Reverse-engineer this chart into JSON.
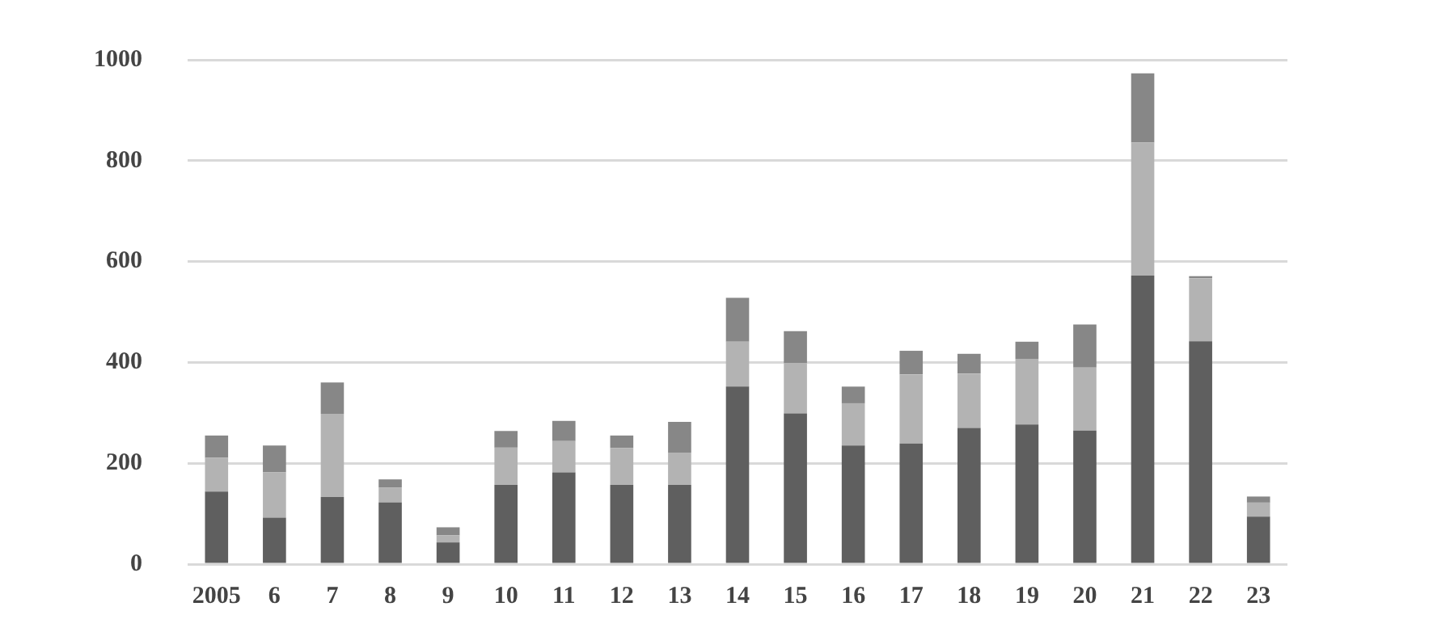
{
  "chart_data": {
    "type": "bar",
    "stacked": true,
    "categories": [
      "2005",
      "6",
      "7",
      "8",
      "9",
      "10",
      "11",
      "12",
      "13",
      "14",
      "15",
      "16",
      "17",
      "18",
      "19",
      "20",
      "21",
      "22",
      "23"
    ],
    "series": [
      {
        "color": "#5f5f5f",
        "values": [
          144,
          92,
          133,
          122,
          43,
          157,
          182,
          157,
          157,
          352,
          299,
          235,
          239,
          270,
          277,
          265,
          572,
          442,
          94
        ]
      },
      {
        "color": "#b3b3b3",
        "values": [
          67,
          90,
          165,
          30,
          14,
          74,
          62,
          73,
          64,
          89,
          100,
          84,
          137,
          108,
          130,
          125,
          264,
          125,
          28
        ]
      },
      {
        "color": "#878787",
        "values": [
          44,
          53,
          62,
          16,
          16,
          33,
          40,
          25,
          61,
          87,
          63,
          33,
          47,
          39,
          34,
          85,
          137,
          4,
          12
        ]
      }
    ],
    "ylim": [
      0,
      1000
    ],
    "yticks": [
      0,
      200,
      400,
      600,
      800,
      1000
    ],
    "grid": "y",
    "legend": false
  }
}
